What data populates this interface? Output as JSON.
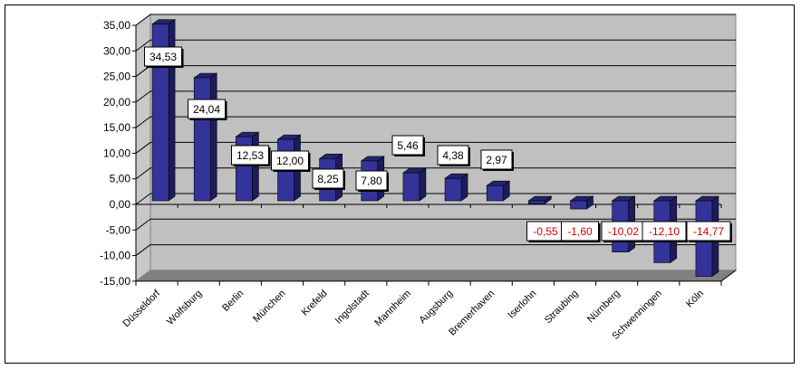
{
  "chart_data": {
    "type": "bar",
    "title": "",
    "xlabel": "",
    "ylabel": "",
    "categories": [
      "Düsseldorf",
      "Wolfsburg",
      "Berlin",
      "München",
      "Krefeld",
      "Ingolstadt",
      "Mannheim",
      "Augsburg",
      "Bremerhaven",
      "Iserlohn",
      "Straubing",
      "Nürnberg",
      "Schwenningen",
      "Köln"
    ],
    "values": [
      34.53,
      24.04,
      12.53,
      12.0,
      8.25,
      7.8,
      5.46,
      4.38,
      2.97,
      -0.55,
      -1.6,
      -10.02,
      -12.1,
      -14.77
    ],
    "value_labels": [
      "34,53",
      "24,04",
      "12,53",
      "12,00",
      "8,25",
      "7,80",
      "5,46",
      "4,38",
      "2,97",
      "-0,55",
      "-1,60",
      "-10,02",
      "-12,10",
      "-14,77"
    ],
    "ylim": [
      -15,
      35
    ],
    "yticks": [
      35,
      30,
      25,
      20,
      15,
      10,
      5,
      0,
      -5,
      -10,
      -15
    ],
    "ytick_labels": [
      "35,00",
      "30,00",
      "25,00",
      "20,00",
      "15,00",
      "10,00",
      "5,00",
      "0,00",
      "-5,00",
      "-10,00",
      "-15,00"
    ],
    "grid": true,
    "legend": "none",
    "colors": {
      "bar": "#333399",
      "bar_side": "#1c1c5c",
      "bar_top": "#24246e",
      "wall": "#c0c0c0",
      "floor": "#808080",
      "positive_label": "#000000",
      "negative_label": "#cc0000"
    }
  }
}
